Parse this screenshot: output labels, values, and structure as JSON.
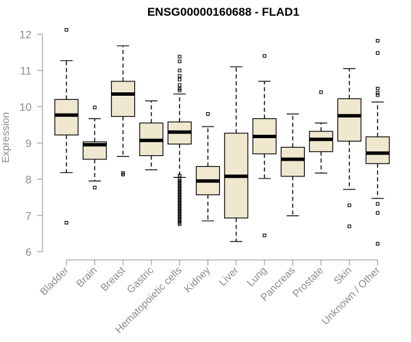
{
  "chart_data": {
    "type": "boxplot",
    "title": "ENSG00000160688 - FLAD1",
    "xlabel": "",
    "ylabel": "Expression",
    "ylim": [
      6,
      12
    ],
    "yticks": [
      6,
      7,
      8,
      9,
      10,
      11,
      12
    ],
    "categories": [
      "Bladder",
      "Brain",
      "Breast",
      "Gastric",
      "Hematopoietic cells",
      "Kidney",
      "Liver",
      "Lung",
      "Pancreas",
      "Prostate",
      "Skin",
      "Unknown / Other"
    ],
    "boxes": [
      {
        "category": "Bladder",
        "whisker_low": 8.18,
        "q1": 9.22,
        "median": 9.77,
        "q3": 10.2,
        "whisker_high": 11.27,
        "outliers": [
          12.12,
          6.8
        ]
      },
      {
        "category": "Brain",
        "whisker_low": 7.95,
        "q1": 8.55,
        "median": 8.95,
        "q3": 9.03,
        "whisker_high": 9.67,
        "outliers": [
          9.98,
          7.77
        ]
      },
      {
        "category": "Breast",
        "whisker_low": 8.63,
        "q1": 9.73,
        "median": 10.35,
        "q3": 10.7,
        "whisker_high": 11.68,
        "outliers": [
          8.17,
          8.13
        ]
      },
      {
        "category": "Gastric",
        "whisker_low": 8.26,
        "q1": 8.65,
        "median": 9.07,
        "q3": 9.55,
        "whisker_high": 10.16,
        "outliers": []
      },
      {
        "category": "Hematopoietic cells",
        "whisker_low": 8.05,
        "q1": 8.97,
        "median": 9.3,
        "q3": 9.58,
        "whisker_high": 10.35,
        "outliers": [
          11.38,
          11.25,
          11.0,
          10.85,
          10.75,
          10.6,
          10.5,
          10.45,
          8.1,
          8.0,
          7.95,
          7.9,
          7.85,
          7.8,
          7.75,
          7.7,
          7.65,
          7.6,
          7.55,
          7.5,
          7.45,
          7.4,
          7.35,
          7.3,
          7.25,
          7.2,
          7.15,
          7.1,
          7.05,
          7.0,
          6.95,
          6.9,
          6.85,
          6.8,
          6.76
        ]
      },
      {
        "category": "Kidney",
        "whisker_low": 6.85,
        "q1": 7.57,
        "median": 7.95,
        "q3": 8.35,
        "whisker_high": 9.45,
        "outliers": [
          9.8
        ]
      },
      {
        "category": "Liver",
        "whisker_low": 6.28,
        "q1": 6.93,
        "median": 8.08,
        "q3": 9.27,
        "whisker_high": 11.1,
        "outliers": []
      },
      {
        "category": "Lung",
        "whisker_low": 8.02,
        "q1": 8.7,
        "median": 9.18,
        "q3": 9.67,
        "whisker_high": 10.7,
        "outliers": [
          11.4,
          6.45
        ]
      },
      {
        "category": "Pancreas",
        "whisker_low": 6.99,
        "q1": 8.08,
        "median": 8.55,
        "q3": 8.88,
        "whisker_high": 9.8,
        "outliers": []
      },
      {
        "category": "Prostate",
        "whisker_low": 8.17,
        "q1": 8.76,
        "median": 9.1,
        "q3": 9.32,
        "whisker_high": 9.55,
        "outliers": [
          10.4
        ]
      },
      {
        "category": "Skin",
        "whisker_low": 7.72,
        "q1": 9.05,
        "median": 9.75,
        "q3": 10.22,
        "whisker_high": 11.05,
        "outliers": [
          7.28,
          6.7
        ]
      },
      {
        "category": "Unknown / Other",
        "whisker_low": 7.47,
        "q1": 8.43,
        "median": 8.72,
        "q3": 9.17,
        "whisker_high": 10.13,
        "outliers": [
          11.82,
          11.48,
          10.5,
          10.38,
          10.32,
          7.32,
          7.07,
          6.22
        ]
      }
    ]
  }
}
